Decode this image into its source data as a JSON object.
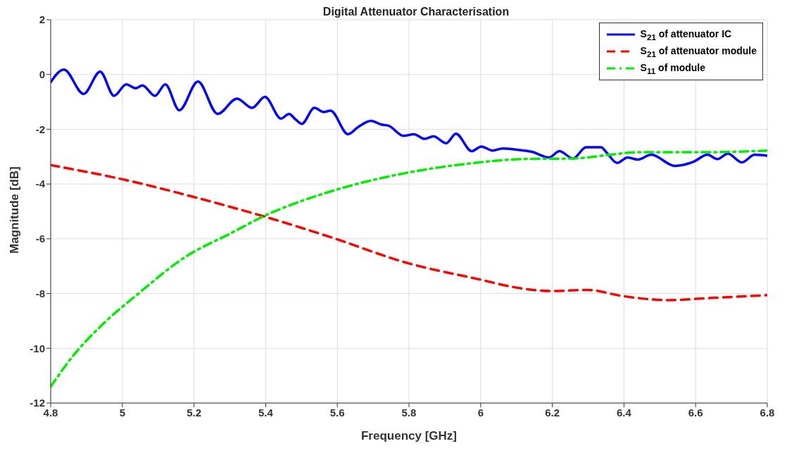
{
  "chart_data": {
    "type": "line",
    "title": "Digital Attenuator Characterisation",
    "xlabel": "Frequency [GHz]",
    "ylabel": "Magnitude [dB]",
    "xlim": [
      4.8,
      6.8
    ],
    "xticks": [
      4.8,
      5,
      5.2,
      5.4,
      5.6,
      5.8,
      6,
      6.2,
      6.4,
      6.6,
      6.8
    ],
    "ylim": [
      -12,
      2
    ],
    "yticks": [
      -12,
      -10,
      -8,
      -6,
      -4,
      -2,
      0,
      2
    ],
    "grid": true,
    "legend": "top right",
    "marker": "none",
    "series": [
      {
        "name": "S$_{21}$ of attenuator IC",
        "color": "#0000ff",
        "line_style": "solid",
        "x": [
          4.8,
          4.837,
          4.892,
          4.938,
          4.977,
          5.011,
          5.037,
          5.056,
          5.091,
          5.12,
          5.159,
          5.211,
          5.266,
          5.32,
          5.362,
          5.398,
          5.443,
          5.465,
          5.485,
          5.501,
          5.536,
          5.562,
          5.581,
          5.63,
          5.659,
          5.694,
          5.723,
          5.743,
          5.785,
          5.814,
          5.843,
          5.868,
          5.904,
          5.931,
          5.975,
          6.002,
          6.033,
          6.062,
          6.097,
          6.142,
          6.191,
          6.22,
          6.258,
          6.294,
          6.336,
          6.352,
          6.381,
          6.41,
          6.439,
          6.476,
          6.542,
          6.594,
          6.633,
          6.661,
          6.69,
          6.729,
          6.765,
          6.8
        ],
        "values": [
          -0.28,
          0.18,
          -0.71,
          0.1,
          -0.78,
          -0.36,
          -0.5,
          -0.4,
          -0.78,
          -0.36,
          -1.31,
          -0.26,
          -1.44,
          -0.88,
          -1.22,
          -0.82,
          -1.61,
          -1.44,
          -1.66,
          -1.8,
          -1.22,
          -1.37,
          -1.32,
          -2.18,
          -1.91,
          -1.69,
          -1.83,
          -1.87,
          -2.24,
          -2.18,
          -2.35,
          -2.26,
          -2.51,
          -2.16,
          -2.8,
          -2.63,
          -2.78,
          -2.7,
          -2.74,
          -2.82,
          -3.03,
          -2.8,
          -3.07,
          -2.66,
          -2.66,
          -2.86,
          -3.23,
          -3.03,
          -3.11,
          -2.93,
          -3.34,
          -3.19,
          -2.93,
          -3.09,
          -2.89,
          -3.21,
          -2.93,
          -2.97
        ]
      },
      {
        "name": "S$_{21}$ of attenuator module",
        "color": "#ff0000",
        "line_style": "dashed",
        "x": [
          4.8,
          5.008,
          5.201,
          5.394,
          5.588,
          5.794,
          5.988,
          6.117,
          6.2,
          6.297,
          6.4,
          6.523,
          6.645,
          6.8
        ],
        "values": [
          -3.31,
          -3.85,
          -4.48,
          -5.18,
          -5.97,
          -6.88,
          -7.46,
          -7.82,
          -7.91,
          -7.87,
          -8.1,
          -8.24,
          -8.16,
          -8.06
        ]
      },
      {
        "name": "S$_{11}$ of module",
        "color": "#00ee00",
        "line_style": "dashdot",
        "x": [
          4.8,
          4.866,
          4.943,
          5.046,
          5.175,
          5.304,
          5.394,
          5.562,
          5.756,
          5.949,
          6.142,
          6.255,
          6.362,
          6.438,
          6.62,
          6.8
        ],
        "values": [
          -11.4,
          -10.22,
          -9.15,
          -7.99,
          -6.67,
          -5.79,
          -5.18,
          -4.35,
          -3.69,
          -3.28,
          -3.08,
          -3.07,
          -2.93,
          -2.84,
          -2.84,
          -2.78
        ]
      }
    ]
  }
}
